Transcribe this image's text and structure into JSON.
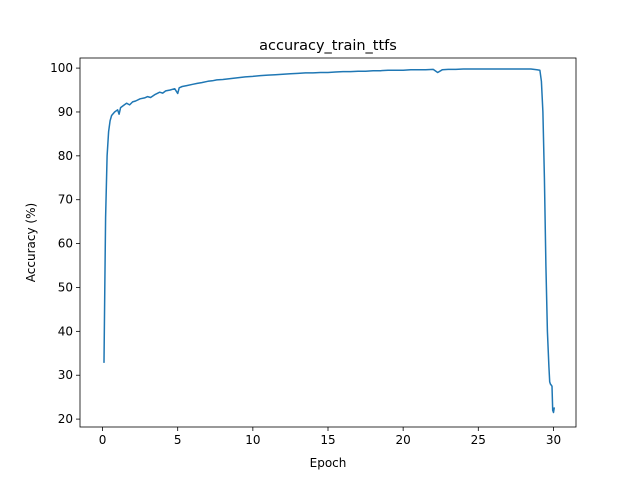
{
  "chart_data": {
    "type": "line",
    "title": "accuracy_train_ttfs",
    "xlabel": "Epoch",
    "ylabel": "Accuracy (%)",
    "xlim": [
      -1.5,
      31.5
    ],
    "ylim": [
      18.2,
      102.3
    ],
    "xticks": [
      0,
      5,
      10,
      15,
      20,
      25,
      30
    ],
    "yticks": [
      20,
      30,
      40,
      50,
      60,
      70,
      80,
      90,
      100
    ],
    "grid": false,
    "legend": "none",
    "series": [
      {
        "color": "#1f77b4",
        "points": [
          [
            0.1,
            33.0
          ],
          [
            0.15,
            50.0
          ],
          [
            0.2,
            66.0
          ],
          [
            0.3,
            80.0
          ],
          [
            0.4,
            85.5
          ],
          [
            0.5,
            88.0
          ],
          [
            0.6,
            89.2
          ],
          [
            0.8,
            90.0
          ],
          [
            1.0,
            90.5
          ],
          [
            1.1,
            89.5
          ],
          [
            1.2,
            91.0
          ],
          [
            1.4,
            91.5
          ],
          [
            1.6,
            92.0
          ],
          [
            1.8,
            91.6
          ],
          [
            2.0,
            92.3
          ],
          [
            2.2,
            92.5
          ],
          [
            2.5,
            93.0
          ],
          [
            2.8,
            93.2
          ],
          [
            3.0,
            93.5
          ],
          [
            3.2,
            93.3
          ],
          [
            3.5,
            94.0
          ],
          [
            3.8,
            94.5
          ],
          [
            4.0,
            94.3
          ],
          [
            4.2,
            94.8
          ],
          [
            4.5,
            95.0
          ],
          [
            4.8,
            95.3
          ],
          [
            5.0,
            94.2
          ],
          [
            5.1,
            95.5
          ],
          [
            5.3,
            95.8
          ],
          [
            5.6,
            96.0
          ],
          [
            6.0,
            96.3
          ],
          [
            6.3,
            96.5
          ],
          [
            6.6,
            96.7
          ],
          [
            7.0,
            97.0
          ],
          [
            7.3,
            97.1
          ],
          [
            7.6,
            97.3
          ],
          [
            8.0,
            97.4
          ],
          [
            8.5,
            97.6
          ],
          [
            9.0,
            97.8
          ],
          [
            9.5,
            98.0
          ],
          [
            10.0,
            98.1
          ],
          [
            10.5,
            98.3
          ],
          [
            11.0,
            98.4
          ],
          [
            11.5,
            98.5
          ],
          [
            12.0,
            98.6
          ],
          [
            12.5,
            98.7
          ],
          [
            13.0,
            98.8
          ],
          [
            13.5,
            98.9
          ],
          [
            14.0,
            98.9
          ],
          [
            14.5,
            99.0
          ],
          [
            15.0,
            99.0
          ],
          [
            15.5,
            99.1
          ],
          [
            16.0,
            99.2
          ],
          [
            16.5,
            99.2
          ],
          [
            17.0,
            99.3
          ],
          [
            17.5,
            99.3
          ],
          [
            18.0,
            99.4
          ],
          [
            18.5,
            99.4
          ],
          [
            19.0,
            99.5
          ],
          [
            19.5,
            99.5
          ],
          [
            20.0,
            99.5
          ],
          [
            20.5,
            99.6
          ],
          [
            21.0,
            99.6
          ],
          [
            21.5,
            99.6
          ],
          [
            22.0,
            99.7
          ],
          [
            22.3,
            99.0
          ],
          [
            22.6,
            99.6
          ],
          [
            23.0,
            99.7
          ],
          [
            23.5,
            99.7
          ],
          [
            24.0,
            99.8
          ],
          [
            24.5,
            99.8
          ],
          [
            25.0,
            99.8
          ],
          [
            25.5,
            99.8
          ],
          [
            26.0,
            99.8
          ],
          [
            26.5,
            99.8
          ],
          [
            27.0,
            99.8
          ],
          [
            27.5,
            99.8
          ],
          [
            28.0,
            99.8
          ],
          [
            28.5,
            99.8
          ],
          [
            28.9,
            99.6
          ],
          [
            29.1,
            99.5
          ],
          [
            29.2,
            97.0
          ],
          [
            29.3,
            90.0
          ],
          [
            29.4,
            75.0
          ],
          [
            29.5,
            55.0
          ],
          [
            29.6,
            40.0
          ],
          [
            29.7,
            32.0
          ],
          [
            29.75,
            28.5
          ],
          [
            29.8,
            28.0
          ],
          [
            29.9,
            27.5
          ],
          [
            29.95,
            22.0
          ],
          [
            30.0,
            21.5
          ],
          [
            30.05,
            22.5
          ]
        ]
      }
    ]
  }
}
